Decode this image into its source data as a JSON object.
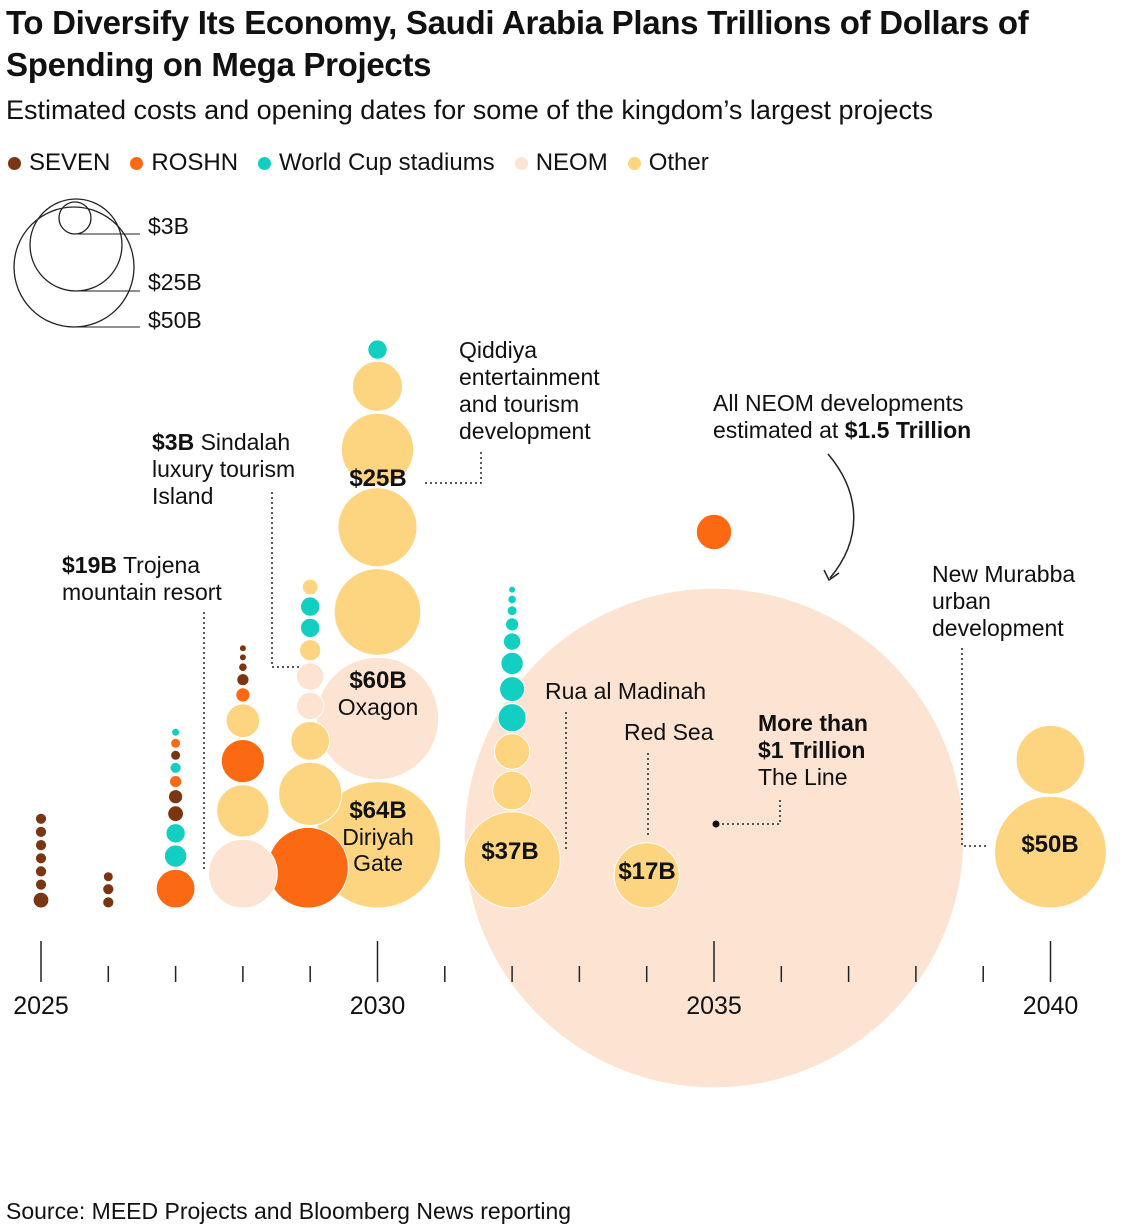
{
  "title": "To Diversify Its Economy, Saudi Arabia Plans Trillions of Dollars of Spending on Mega Projects",
  "subtitle": "Estimated costs and opening dates for some of the kingdom’s largest projects",
  "source": "Source: MEED Projects and Bloomberg News reporting",
  "legend": [
    {
      "label": "SEVEN",
      "color": "#7a3511"
    },
    {
      "label": "ROSHN",
      "color": "#fb6a12"
    },
    {
      "label": "World Cup stadiums",
      "color": "#13cfc1"
    },
    {
      "label": "NEOM",
      "color": "#fde3d1"
    },
    {
      "label": "Other",
      "color": "#fdd480"
    }
  ],
  "size_legend": [
    "$3B",
    "$25B",
    "$50B"
  ],
  "chart_data": {
    "type": "scatter",
    "x_ticks": [
      "2025",
      "2030",
      "2035",
      "2040"
    ],
    "xlim": [
      2025,
      2040
    ],
    "projects": [
      {
        "year": 2025,
        "category": "SEVEN",
        "value": 0.5
      },
      {
        "year": 2025,
        "category": "SEVEN",
        "value": 0.5
      },
      {
        "year": 2025,
        "category": "SEVEN",
        "value": 0.5
      },
      {
        "year": 2025,
        "category": "SEVEN",
        "value": 0.5
      },
      {
        "year": 2025,
        "category": "SEVEN",
        "value": 0.5
      },
      {
        "year": 2025,
        "category": "SEVEN",
        "value": 0.5
      },
      {
        "year": 2025,
        "category": "SEVEN",
        "value": 1
      },
      {
        "year": 2026,
        "category": "SEVEN",
        "value": 0.4
      },
      {
        "year": 2026,
        "category": "SEVEN",
        "value": 0.5
      },
      {
        "year": 2026,
        "category": "SEVEN",
        "value": 0.5
      },
      {
        "year": 2027,
        "category": "World Cup stadiums",
        "value": 0.25
      },
      {
        "year": 2027,
        "category": "SEVEN",
        "value": 0.4
      },
      {
        "year": 2027,
        "category": "ROSHN",
        "value": 0.4
      },
      {
        "year": 2027,
        "category": "World Cup stadiums",
        "value": 0.5
      },
      {
        "year": 2027,
        "category": "ROSHN",
        "value": 0.6
      },
      {
        "year": 2027,
        "category": "SEVEN",
        "value": 0.8
      },
      {
        "year": 2027,
        "category": "SEVEN",
        "value": 1
      },
      {
        "year": 2027,
        "category": "World Cup stadiums",
        "value": 1.5
      },
      {
        "year": 2027,
        "category": "World Cup stadiums",
        "value": 2
      },
      {
        "year": 2027,
        "category": "ROSHN",
        "value": 6
      },
      {
        "year": 2028,
        "category": "SEVEN",
        "value": 0.2
      },
      {
        "year": 2028,
        "category": "SEVEN",
        "value": 0.2
      },
      {
        "year": 2028,
        "category": "SEVEN",
        "value": 0.3
      },
      {
        "year": 2028,
        "category": "SEVEN",
        "value": 0.6
      },
      {
        "year": 2028,
        "category": "ROSHN",
        "value": 0.8
      },
      {
        "year": 2028,
        "category": "Other",
        "value": 4.5
      },
      {
        "year": 2028,
        "category": "ROSHN",
        "value": 7.5
      },
      {
        "year": 2028,
        "category": "Other",
        "value": 11
      },
      {
        "year": 2028,
        "category": "NEOM",
        "value": 19,
        "label": "$19B Trojena mountain resort"
      },
      {
        "year": 2029,
        "category": "Other",
        "value": 1
      },
      {
        "year": 2029,
        "category": "World Cup stadiums",
        "value": 1.5
      },
      {
        "year": 2029,
        "category": "World Cup stadiums",
        "value": 1.5
      },
      {
        "year": 2029,
        "category": "Other",
        "value": 1.8
      },
      {
        "year": 2029,
        "category": "NEOM",
        "value": 3
      },
      {
        "year": 2029,
        "category": "NEOM",
        "value": 3,
        "label": "$3B Sindalah luxury tourism Island"
      },
      {
        "year": 2029,
        "category": "Other",
        "value": 6
      },
      {
        "year": 2029,
        "category": "Other",
        "value": 16
      },
      {
        "year": 2029,
        "category": "ROSHN",
        "value": 26
      },
      {
        "year": 2030,
        "category": "World Cup stadiums",
        "value": 1.5
      },
      {
        "year": 2030,
        "category": "Other",
        "value": 10
      },
      {
        "year": 2030,
        "category": "Other",
        "value": 21
      },
      {
        "year": 2030,
        "category": "Other",
        "value": 25,
        "label": "$25B Qiddiya entertainment and tourism development"
      },
      {
        "year": 2030,
        "category": "Other",
        "value": 30
      },
      {
        "year": 2030,
        "category": "NEOM",
        "value": 60,
        "label": "$60B Oxagon"
      },
      {
        "year": 2030,
        "category": "Other",
        "value": 64,
        "label": "$64B Diriyah Gate"
      },
      {
        "year": 2032,
        "category": "World Cup stadiums",
        "value": 0.2
      },
      {
        "year": 2032,
        "category": "World Cup stadiums",
        "value": 0.3
      },
      {
        "year": 2032,
        "category": "World Cup stadiums",
        "value": 0.4
      },
      {
        "year": 2032,
        "category": "World Cup stadiums",
        "value": 0.7
      },
      {
        "year": 2032,
        "category": "World Cup stadiums",
        "value": 1.2
      },
      {
        "year": 2032,
        "category": "World Cup stadiums",
        "value": 2
      },
      {
        "year": 2032,
        "category": "World Cup stadiums",
        "value": 2.5
      },
      {
        "year": 2032,
        "category": "World Cup stadiums",
        "value": 3.2
      },
      {
        "year": 2032,
        "category": "Other",
        "value": 5
      },
      {
        "year": 2032,
        "category": "Other",
        "value": 6
      },
      {
        "year": 2032,
        "category": "Other",
        "value": 37,
        "label": "$37B Rua al Madinah"
      },
      {
        "year": 2034,
        "category": "Other",
        "value": 17,
        "label": "$17B Red Sea"
      },
      {
        "year": 2035,
        "category": "ROSHN",
        "value": 5
      },
      {
        "year": 2035,
        "category": "NEOM",
        "value": 1000,
        "label": "More than $1 Trillion The Line"
      },
      {
        "year": 2040,
        "category": "Other",
        "value": 19
      },
      {
        "year": 2040,
        "category": "Other",
        "value": 50,
        "label": "$50B New Murabba urban development"
      }
    ]
  },
  "annotations": {
    "neom_total_line1": "All NEOM developments",
    "neom_total_prefix": "estimated at",
    "neom_total_value": "$1.5 Trillion",
    "trojena_value": "$19B",
    "trojena_line1": "Trojena",
    "trojena_line2": "mountain resort",
    "sindalah_value": "$3B",
    "sindalah_line1": "Sindalah",
    "sindalah_line2": "luxury tourism",
    "sindalah_line3": "Island",
    "qiddiya_line1": "Qiddiya",
    "qiddiya_line2": "entertainment",
    "qiddiya_line3": "and tourism",
    "qiddiya_line4": "development",
    "qiddiya_value": "$25B",
    "oxagon_value": "$60B",
    "oxagon_name": "Oxagon",
    "diriyah_value": "$64B",
    "diriyah_line1": "Diriyah",
    "diriyah_line2": "Gate",
    "rua_name": "Rua al Madinah",
    "rua_value": "$37B",
    "redsea_name": "Red Sea",
    "redsea_value": "$17B",
    "line_line1": "More than",
    "line_line2": "$1 Trillion",
    "line_name": "The Line",
    "murabba_line1": "New Murabba",
    "murabba_line2": "urban",
    "murabba_line3": "development",
    "murabba_value": "$50B"
  }
}
